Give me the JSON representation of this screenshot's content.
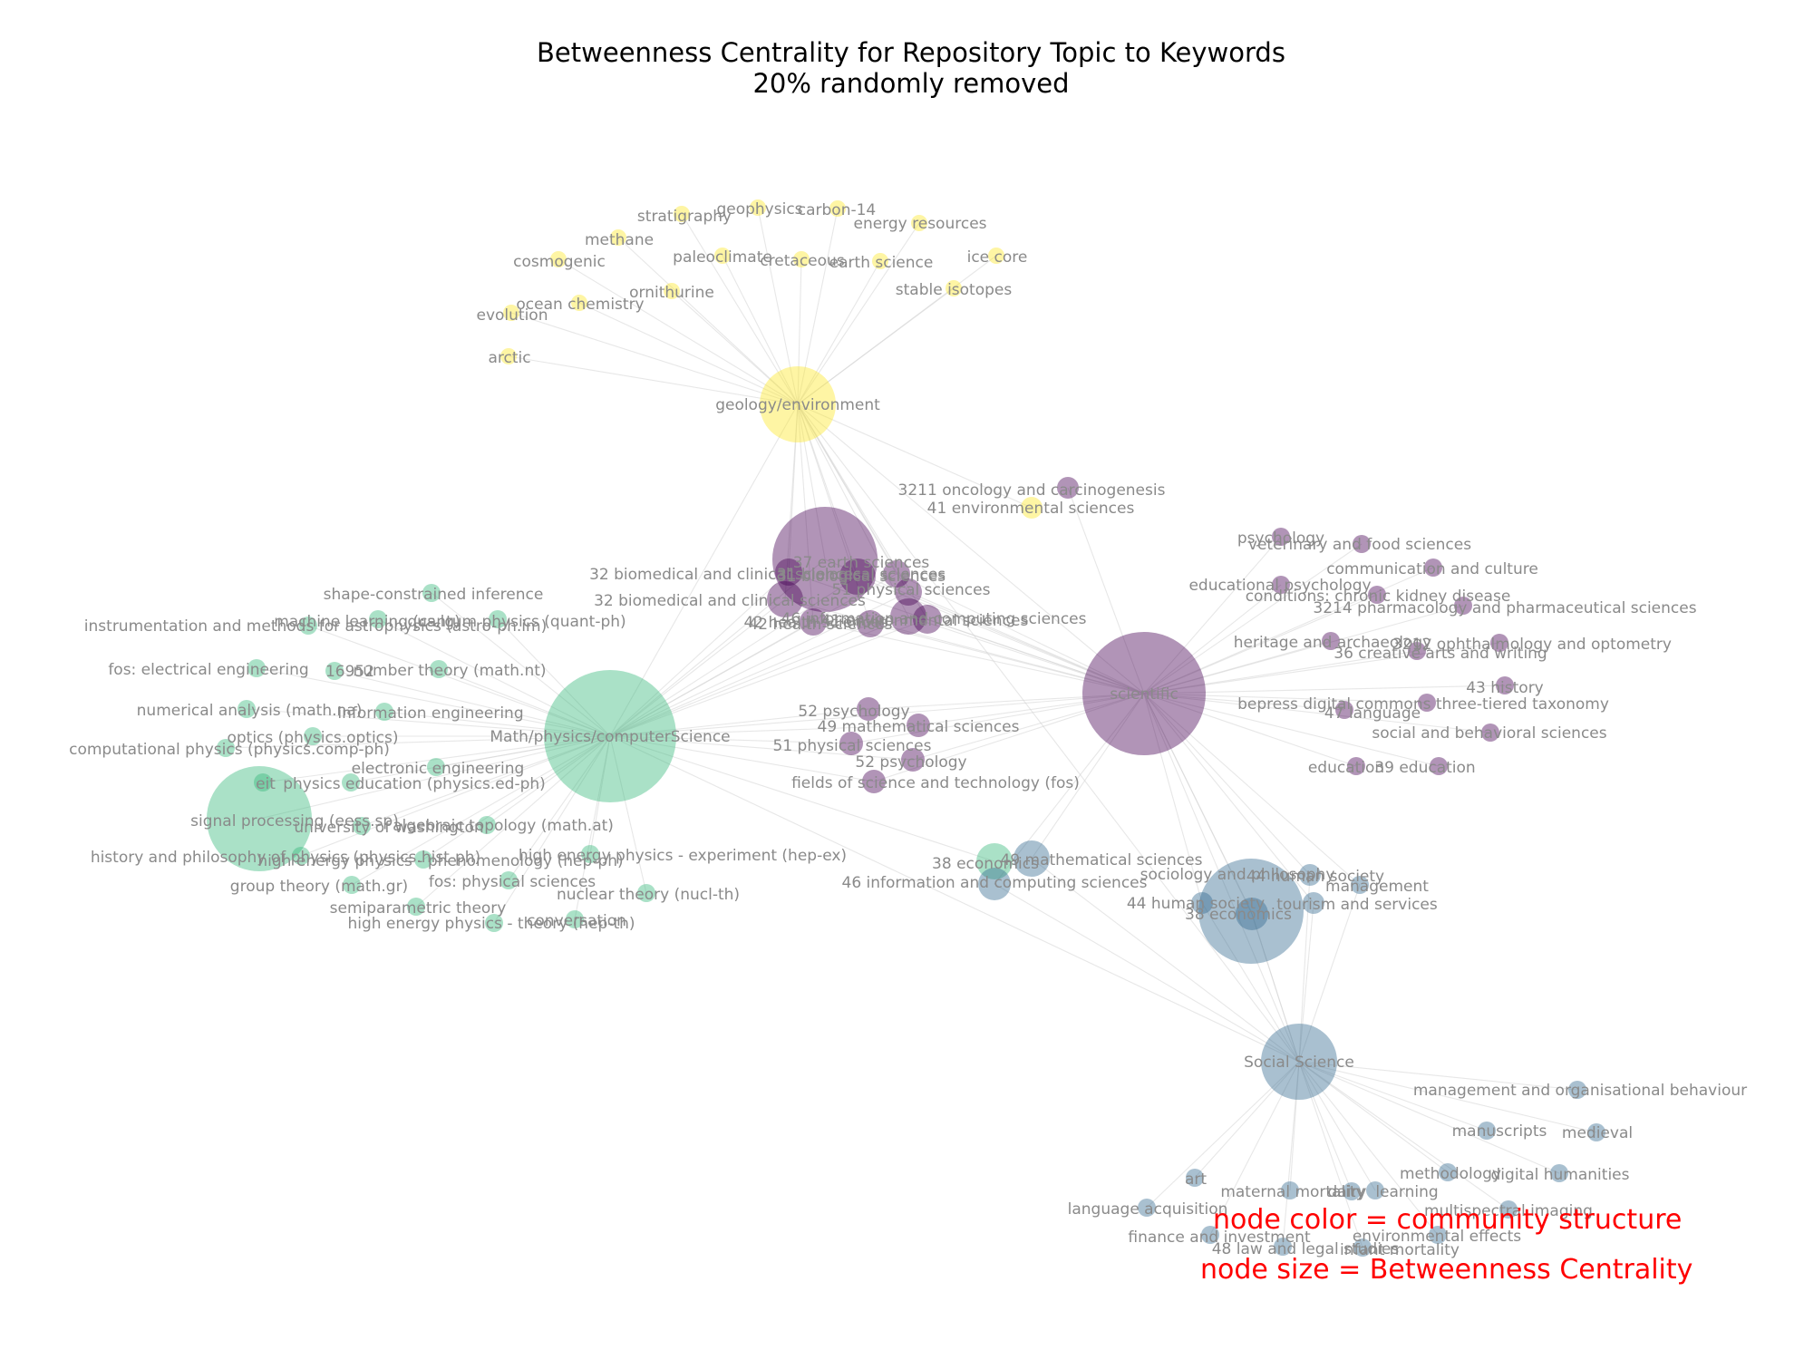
{
  "title": "Betweenness Centrality for Repository Topic to Keywords",
  "subtitle": "20% randomly removed",
  "legend": {
    "color_note": "node color = community structure",
    "size_note": "node size = Betweenness Centrality"
  },
  "community_colors": {
    "geology": "#fde725",
    "biomedical": "#440154",
    "math": "#35b779",
    "social": "#31688e"
  },
  "hubs": [
    {
      "id": "scientific",
      "label": "scientific",
      "community": "biomedical"
    },
    {
      "id": "math",
      "label": "Math/physics/computerScience",
      "community": "math"
    },
    {
      "id": "geology",
      "label": "geology/environment",
      "community": "geology"
    },
    {
      "id": "social",
      "label": "Social Science",
      "community": "social"
    }
  ],
  "nodes": {
    "geology": [
      "stratigraphy",
      "geophysics",
      "carbon-14",
      "energy resources",
      "methane",
      "paleoclimate",
      "cretaceous",
      "earth science",
      "ice core",
      "cosmogenic",
      "ornithurine",
      "stable isotopes",
      "ocean chemistry",
      "evolution",
      "arctic",
      "41 environmental sciences"
    ],
    "biomedical": [
      "3211 oncology and carcinogenesis",
      "psychology",
      "veterinary and food sciences",
      "communication and culture",
      "educational psychology",
      "conditions: chronic kidney disease",
      "3214 pharmacology and pharmaceutical sciences",
      "heritage and archaeology",
      "3212 ophthalmology and optometry",
      "36 creative arts and writing",
      "43 history",
      "bepress digital commons three-tiered taxonomy",
      "47 language",
      "social and behavioral sciences",
      "education",
      "39 education",
      "52 psychology",
      "49 mathematical sciences",
      "51 physical sciences",
      "52 psychology",
      "fields of science and technology (fos)",
      "37 earth sciences",
      "32 biomedical and clinical sciences",
      "31 biological sciences",
      "31 biological sciences",
      "51 physical sciences",
      "32 biomedical and clinical sciences",
      "42 health sciences",
      "41 environmental sciences",
      "46 information and computing sciences",
      "42 health sciences"
    ],
    "math": [
      "shape-constrained inference",
      "machine learning (cs.lg)",
      "quantum physics (quant-ph)",
      "instrumentation and methods for astrophysics (astro-ph.im)",
      "fos: electrical engineering",
      "16952",
      "number theory (math.nt)",
      "numerical analysis (math.na)",
      "information engineering",
      "optics (physics.optics)",
      "computational physics (physics.comp-ph)",
      "electronic engineering",
      "physics education (physics.ed-ph)",
      "eit",
      "signal processing (eess.sp)",
      "university of washington",
      "algebraic topology (math.at)",
      "history and philosophy of physics (physics.hist-ph)",
      "high energy physics - phenomenology (hep-ph)",
      "high energy physics - experiment (hep-ex)",
      "fos: physical sciences",
      "group theory (math.gr)",
      "nuclear theory (nucl-th)",
      "semiparametric theory",
      "conversation",
      "high energy physics - theory (hep-th)",
      "38 economics"
    ],
    "social": [
      "49 mathematical sciences",
      "46 information and computing sciences",
      "sociology and philosophy",
      "44 human society",
      "management",
      "44 human society",
      "tourism and services",
      "38 economics",
      "management and organisational behaviour",
      "manuscripts",
      "medieval",
      "methodology",
      "digital humanities",
      "art",
      "maternal mortality",
      "dairy",
      "learning",
      "language acquisition",
      "multispectral imaging",
      "finance and investment",
      "environmental effects",
      "48 law and legal studies",
      "infant mortality"
    ]
  }
}
